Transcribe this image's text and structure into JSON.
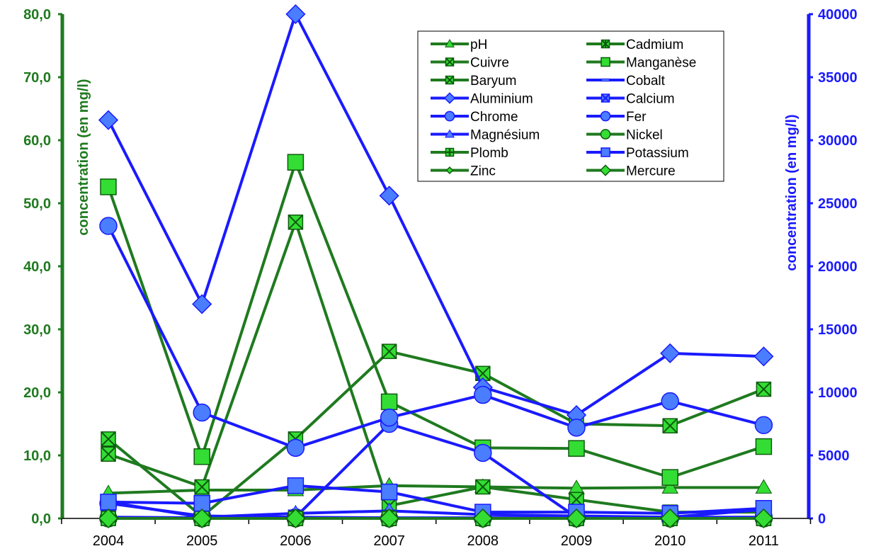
{
  "chart_data": {
    "type": "line",
    "title": "",
    "categories": [
      "2004",
      "2005",
      "2006",
      "2007",
      "2008",
      "2009",
      "2010",
      "2011"
    ],
    "y_left": {
      "label": "concentration (en mg/l)",
      "range": [
        0,
        80
      ],
      "ticks": [
        "0,0",
        "10,0",
        "20,0",
        "30,0",
        "40,0",
        "50,0",
        "60,0",
        "70,0",
        "80,0"
      ],
      "color": "#1f7a1f"
    },
    "y_right": {
      "label": "concentration (en mg/l)",
      "range": [
        0,
        40000
      ],
      "ticks": [
        "0",
        "5000",
        "10000",
        "15000",
        "20000",
        "25000",
        "30000",
        "35000",
        "40000"
      ],
      "color": "#1a1aff"
    },
    "legend_position": "top-right",
    "series": [
      {
        "name": "pH",
        "axis": "left",
        "color": "#1f7a1f",
        "marker": "triangle",
        "values": [
          4.0,
          4.5,
          4.5,
          5.2,
          5.0,
          4.8,
          4.9,
          4.9
        ]
      },
      {
        "name": "Cadmium",
        "axis": "left",
        "color": "#1f7a1f",
        "marker": "square-x-star",
        "values": [
          0.0,
          0.0,
          0.0,
          0.0,
          0.0,
          0.0,
          0.0,
          0.0
        ]
      },
      {
        "name": "Cuivre",
        "axis": "left",
        "color": "#1f7a1f",
        "marker": "x-square",
        "values": [
          10.2,
          5.0,
          47.0,
          2.0,
          5.0,
          3.0,
          1.0,
          1.0
        ]
      },
      {
        "name": "Manganèse",
        "axis": "left",
        "color": "#1f7a1f",
        "marker": "square",
        "values": [
          52.6,
          9.8,
          56.5,
          18.5,
          11.2,
          11.1,
          6.5,
          11.4
        ]
      },
      {
        "name": "Baryum",
        "axis": "left",
        "color": "#1f7a1f",
        "marker": "x-square",
        "values": [
          12.6,
          0.3,
          12.6,
          26.5,
          23.0,
          15.0,
          14.7,
          20.5
        ]
      },
      {
        "name": "Cobalt",
        "axis": "right",
        "color": "#1a1aff",
        "marker": "dash",
        "values": [
          0,
          0,
          0,
          0,
          0,
          0,
          0,
          0
        ]
      },
      {
        "name": "Aluminium",
        "axis": "right",
        "color": "#1a1aff",
        "marker": "diamond",
        "values": [
          31600,
          17000,
          40000,
          25600,
          10400,
          8200,
          13100,
          12850
        ]
      },
      {
        "name": "Calcium",
        "axis": "right",
        "color": "#1a1aff",
        "marker": "x-square",
        "values": [
          100,
          50,
          100,
          50,
          50,
          50,
          50,
          50
        ]
      },
      {
        "name": "Chrome",
        "axis": "right",
        "color": "#1a1aff",
        "marker": "circle",
        "values": [
          1200,
          200,
          100,
          7500,
          5200,
          100,
          100,
          100
        ]
      },
      {
        "name": "Fer",
        "axis": "right",
        "color": "#1a1aff",
        "marker": "circle",
        "values": [
          23200,
          8400,
          5600,
          8000,
          9800,
          7200,
          9300,
          7400
        ]
      },
      {
        "name": "Magnésium",
        "axis": "right",
        "color": "#1a1aff",
        "marker": "triangle",
        "values": [
          1300,
          100,
          400,
          600,
          300,
          200,
          100,
          700
        ]
      },
      {
        "name": "Nickel",
        "axis": "left",
        "color": "#1f7a1f",
        "marker": "circle",
        "values": [
          0.0,
          0.0,
          0.0,
          0.0,
          0.0,
          0.0,
          0.0,
          0.0
        ]
      },
      {
        "name": "Plomb",
        "axis": "left",
        "color": "#1f7a1f",
        "marker": "square-plus",
        "values": [
          0.0,
          0.0,
          0.0,
          0.0,
          0.0,
          0.0,
          0.0,
          0.0
        ]
      },
      {
        "name": "Potassium",
        "axis": "right",
        "color": "#1a1aff",
        "marker": "square",
        "values": [
          1300,
          1200,
          2600,
          2100,
          500,
          500,
          400,
          800
        ]
      },
      {
        "name": "Zinc",
        "axis": "left",
        "color": "#1f7a1f",
        "marker": "diamond-small",
        "values": [
          0.0,
          0.0,
          0.0,
          0.0,
          0.0,
          0.0,
          0.0,
          0.0
        ]
      },
      {
        "name": "Mercure",
        "axis": "left",
        "color": "#1f7a1f",
        "marker": "diamond",
        "values": [
          0.0,
          0.0,
          0.0,
          0.0,
          0.0,
          0.0,
          0.0,
          0.0
        ]
      }
    ]
  }
}
